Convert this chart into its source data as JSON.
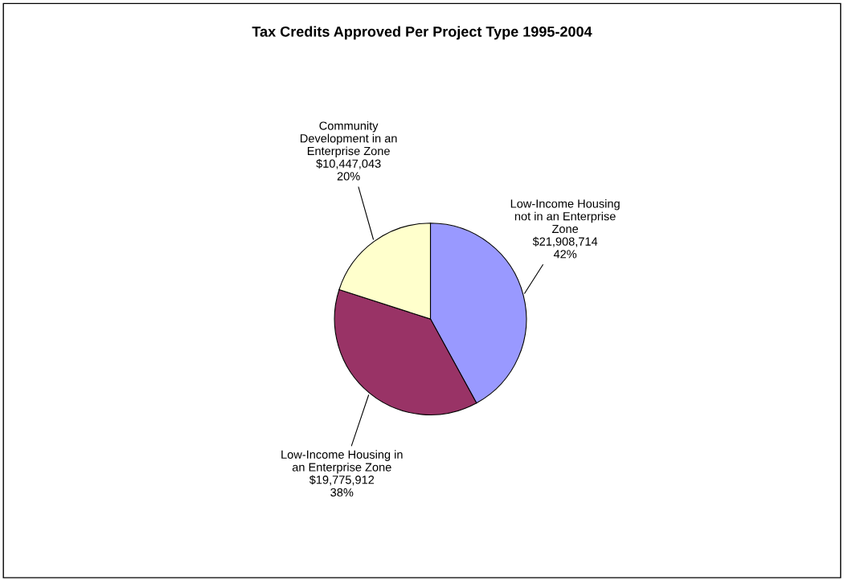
{
  "chart_data": {
    "type": "pie",
    "title": "Tax Credits Approved Per Project Type 1995-2004",
    "categories": [
      "Low-Income Housing\nnot in an Enterprise\nZone",
      "Low-Income Housing in\nan Enterprise Zone",
      "Community\nDevelopment in an\nEnterprise Zone"
    ],
    "values": [
      21908714,
      19775912,
      10447043
    ],
    "value_labels": [
      "$21,908,714\n42%",
      "$19,775,912\n38%",
      "$10,447,043\n20%"
    ],
    "colors": [
      "#9999ff",
      "#993366",
      "#ffffcc"
    ],
    "legend": false
  }
}
